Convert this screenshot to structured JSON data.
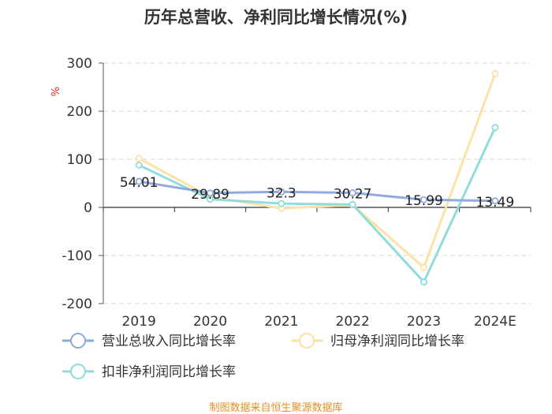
{
  "chart_data": {
    "type": "line",
    "title": "历年总营收、净利同比增长情况(%)",
    "ylabel": "%",
    "categories": [
      "2019",
      "2020",
      "2021",
      "2022",
      "2023",
      "2024E"
    ],
    "ylim": [
      -200,
      300
    ],
    "yticks": [
      "300",
      "200",
      "100",
      "0",
      "-100",
      "-200"
    ],
    "grid": true,
    "legend_position": "bottom",
    "series": [
      {
        "name": "营业总收入同比增长率",
        "color": "#8faadc",
        "values": [
          54.01,
          29.89,
          32.3,
          30.27,
          15.99,
          13.49
        ],
        "labels": [
          "54.01",
          "29.89",
          "32.3",
          "30.27",
          "15.99",
          "13.49"
        ]
      },
      {
        "name": "归母净利润同比增长率",
        "color": "#fde2a6",
        "values": [
          102,
          22,
          -2,
          5,
          -125,
          278
        ]
      },
      {
        "name": "扣非净利润同比增长率",
        "color": "#8fdcdc",
        "values": [
          88,
          17,
          8,
          6,
          -155,
          166
        ]
      }
    ]
  },
  "source": "制图数据来自恒生聚源数据库"
}
